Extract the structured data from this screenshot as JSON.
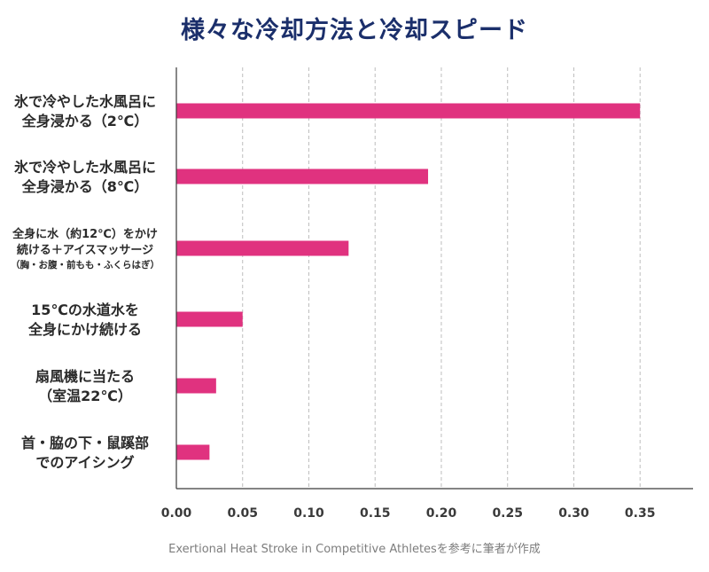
{
  "chart_data": {
    "type": "bar",
    "orientation": "horizontal",
    "title": "様々な冷却方法と冷却スピード",
    "source": "Exertional Heat Stroke in Competitive Athletesを参考に筆者が作成",
    "categories": [
      [
        "氷で冷やした水風呂に",
        "全身浸かる（2℃）"
      ],
      [
        "氷で冷やした水風呂に",
        "全身浸かる（8℃）"
      ],
      [
        "全身に水（約12℃）をかけ",
        "続ける＋アイスマッサージ",
        "（胸・お腹・前もも・ふくらはぎ）"
      ],
      [
        "15℃の水道水を",
        "全身にかけ続ける"
      ],
      [
        "扇風機に当たる",
        "（室温22℃）"
      ],
      [
        "首・脇の下・鼠蹊部",
        "でのアイシング"
      ]
    ],
    "values": [
      0.35,
      0.19,
      0.13,
      0.05,
      0.03,
      0.025
    ],
    "xlim": [
      0,
      0.39
    ],
    "xticks": [
      "0.00",
      "0.05",
      "0.10",
      "0.15",
      "0.20",
      "0.25",
      "0.30",
      "0.35"
    ],
    "xtick_values": [
      0,
      0.05,
      0.1,
      0.15,
      0.2,
      0.25,
      0.3,
      0.35
    ],
    "grid": "vertical-dashed",
    "bar_color": "#e0327f"
  }
}
